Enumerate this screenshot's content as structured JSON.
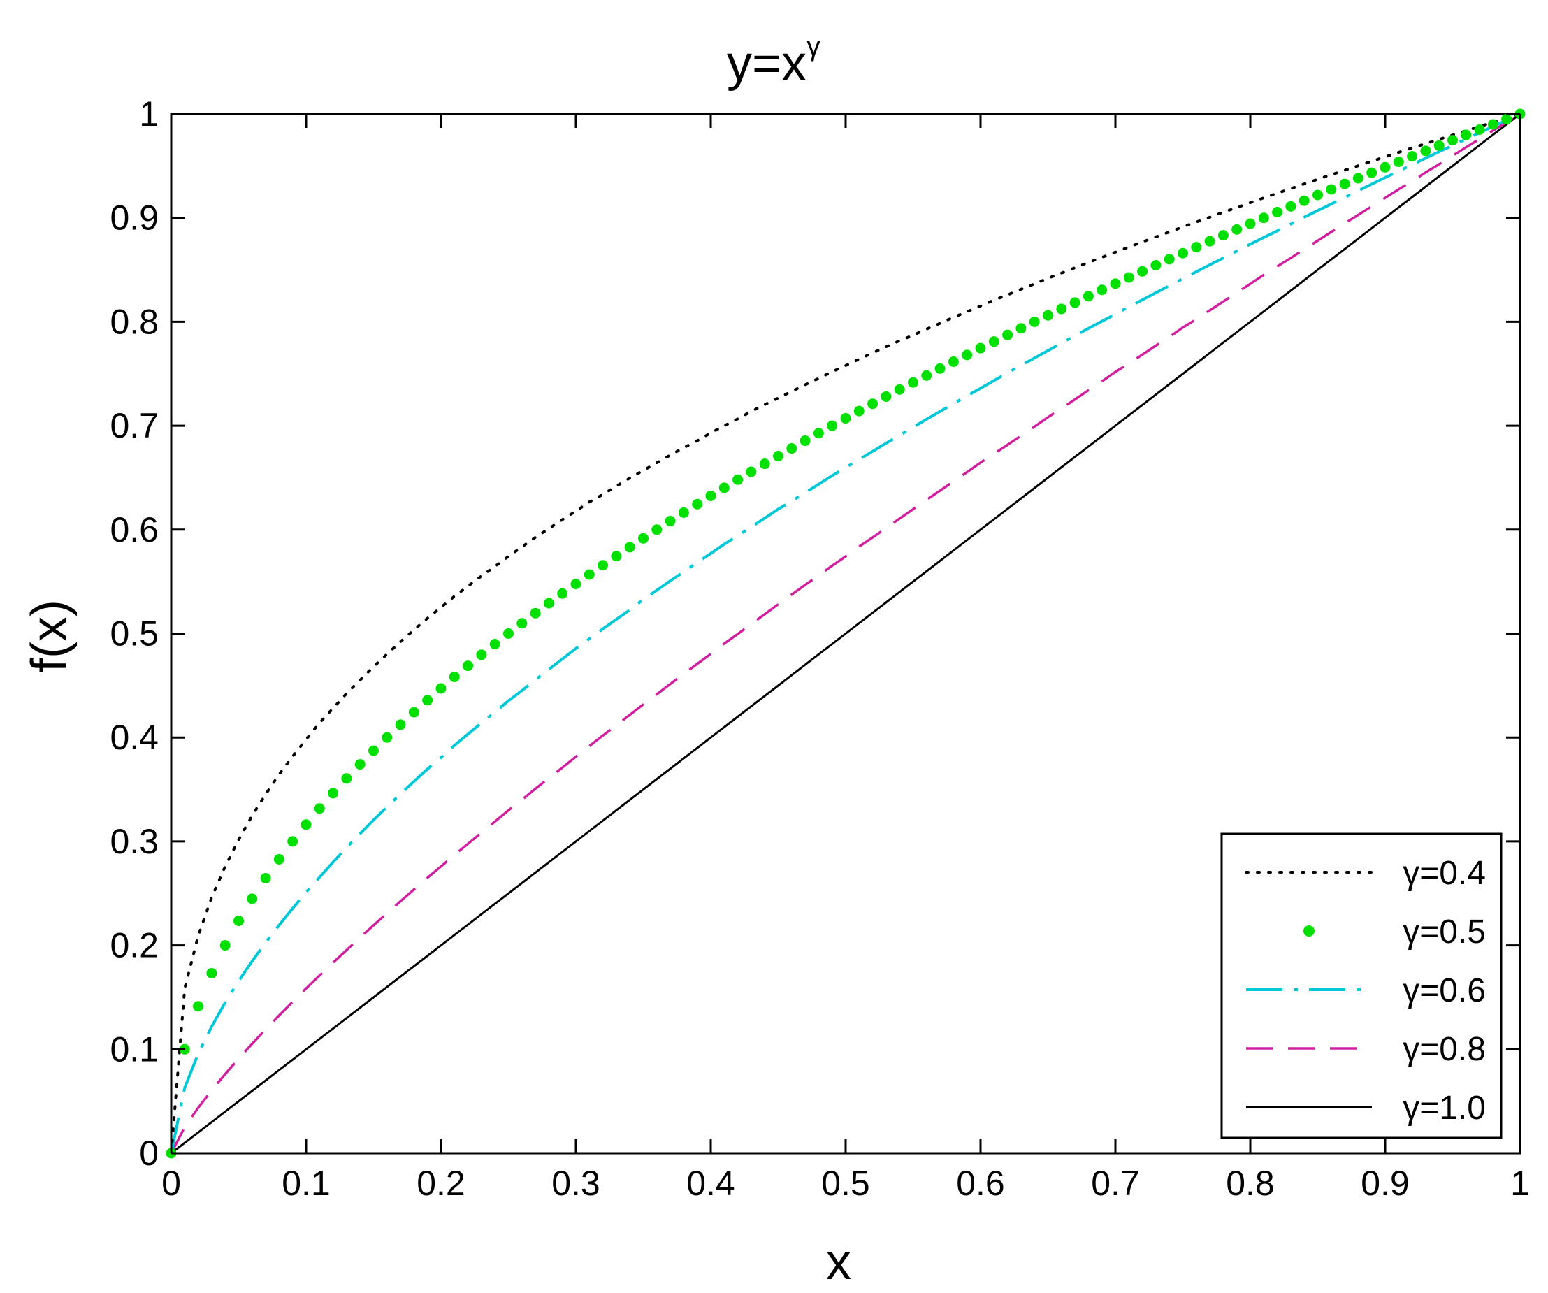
{
  "chart_data": {
    "type": "line",
    "title": {
      "base": "y=x",
      "superscript": "γ"
    },
    "xlabel": "x",
    "ylabel": "f(x)",
    "xlim": [
      0,
      1
    ],
    "ylim": [
      0,
      1
    ],
    "x_ticks": [
      0,
      0.1,
      0.2,
      0.3,
      0.4,
      0.5,
      0.6,
      0.7,
      0.8,
      0.9,
      1
    ],
    "x_tick_labels": [
      "0",
      "0.1",
      "0.2",
      "0.3",
      "0.4",
      "0.5",
      "0.6",
      "0.7",
      "0.8",
      "0.9",
      "1"
    ],
    "y_ticks": [
      0,
      0.1,
      0.2,
      0.3,
      0.4,
      0.5,
      0.6,
      0.7,
      0.8,
      0.9,
      1
    ],
    "y_tick_labels": [
      "0",
      "0.1",
      "0.2",
      "0.3",
      "0.4",
      "0.5",
      "0.6",
      "0.7",
      "0.8",
      "0.9",
      "1"
    ],
    "grid": false,
    "legend_position": "bottom-right",
    "x": [
      0,
      0.01,
      0.02,
      0.03,
      0.04,
      0.05,
      0.06,
      0.07,
      0.08,
      0.09,
      0.1,
      0.11,
      0.12,
      0.13,
      0.14,
      0.15,
      0.16,
      0.17,
      0.18,
      0.19,
      0.2,
      0.21,
      0.22,
      0.23,
      0.24,
      0.25,
      0.26,
      0.27,
      0.28,
      0.29,
      0.3,
      0.31,
      0.32,
      0.33,
      0.34,
      0.35,
      0.36,
      0.37,
      0.38,
      0.39,
      0.4,
      0.41,
      0.42,
      0.43,
      0.44,
      0.45,
      0.46,
      0.47,
      0.48,
      0.49,
      0.5,
      0.51,
      0.52,
      0.53,
      0.54,
      0.55,
      0.56,
      0.57,
      0.58,
      0.59,
      0.6,
      0.61,
      0.62,
      0.63,
      0.64,
      0.65,
      0.66,
      0.67,
      0.68,
      0.69,
      0.7,
      0.71,
      0.72,
      0.73,
      0.74,
      0.75,
      0.76,
      0.77,
      0.78,
      0.79,
      0.8,
      0.81,
      0.82,
      0.83,
      0.84,
      0.85,
      0.86,
      0.87,
      0.88,
      0.89,
      0.9,
      0.91,
      0.92,
      0.93,
      0.94,
      0.95,
      0.96,
      0.97,
      0.98,
      0.99,
      1
    ],
    "series": [
      {
        "name": "γ=0.4",
        "gamma": 0.4,
        "color": "#000000",
        "style": "dotted",
        "values": [
          0,
          0.1585,
          0.2091,
          0.2463,
          0.2759,
          0.3017,
          0.3248,
          0.3453,
          0.3644,
          0.3817,
          0.3981,
          0.4141,
          0.4281,
          0.4424,
          0.4552,
          0.4681,
          0.4802,
          0.4922,
          0.5036,
          0.5148,
          0.5253,
          0.5359,
          0.5456,
          0.5554,
          0.5646,
          0.5743,
          0.5834,
          0.5926,
          0.601,
          0.6097,
          0.6178,
          0.6266,
          0.6338,
          0.6419,
          0.6496,
          0.657,
          0.6643,
          0.6717,
          0.6789,
          0.6856,
          0.6931,
          0.6999,
          0.7066,
          0.7137,
          0.7203,
          0.7266,
          0.733,
          0.7394,
          0.7456,
          0.7519,
          0.7579,
          0.7641,
          0.77,
          0.776,
          0.7818,
          0.7871,
          0.793,
          0.7985,
          0.8044,
          0.8096,
          0.8152,
          0.8209,
          0.8258,
          0.8313,
          0.8365,
          0.8418,
          0.8468,
          0.852,
          0.8571,
          0.862,
          0.867,
          0.8719,
          0.8768,
          0.8817,
          0.8864,
          0.8913,
          0.896,
          0.9006,
          0.9055,
          0.9098,
          0.9146,
          0.9192,
          0.9237,
          0.9282,
          0.9327,
          0.9371,
          0.9415,
          0.9458,
          0.9501,
          0.9545,
          0.9587,
          0.963,
          0.9672,
          0.9714,
          0.9755,
          0.9797,
          0.9838,
          0.9879,
          0.9919,
          0.996,
          1
        ]
      },
      {
        "name": "γ=0.5",
        "gamma": 0.5,
        "color": "#00e000",
        "style": "markers",
        "values": [
          0,
          0.1,
          0.1414,
          0.1732,
          0.2,
          0.2236,
          0.2449,
          0.2646,
          0.2828,
          0.3,
          0.3162,
          0.3317,
          0.3464,
          0.3606,
          0.3742,
          0.3873,
          0.4,
          0.4123,
          0.4243,
          0.4359,
          0.4472,
          0.4583,
          0.469,
          0.4796,
          0.4899,
          0.5,
          0.5099,
          0.5196,
          0.5292,
          0.5385,
          0.5477,
          0.5568,
          0.5657,
          0.5745,
          0.5831,
          0.5916,
          0.6,
          0.6083,
          0.6164,
          0.6245,
          0.6325,
          0.6403,
          0.6481,
          0.6557,
          0.6633,
          0.6708,
          0.6782,
          0.6856,
          0.6928,
          0.7,
          0.7071,
          0.7141,
          0.7211,
          0.728,
          0.7348,
          0.7416,
          0.7483,
          0.755,
          0.7616,
          0.7681,
          0.7746,
          0.781,
          0.7874,
          0.7937,
          0.8,
          0.8062,
          0.8124,
          0.8185,
          0.8246,
          0.8307,
          0.8367,
          0.8426,
          0.8485,
          0.8544,
          0.8602,
          0.866,
          0.8718,
          0.8775,
          0.8832,
          0.8888,
          0.8944,
          0.9,
          0.9055,
          0.911,
          0.9165,
          0.922,
          0.9274,
          0.9327,
          0.9381,
          0.9434,
          0.9487,
          0.9539,
          0.9592,
          0.9644,
          0.9695,
          0.9747,
          0.9798,
          0.9849,
          0.9899,
          0.995,
          1
        ]
      },
      {
        "name": "γ=0.6",
        "gamma": 0.6,
        "color": "#00c8d8",
        "style": "dash-dot",
        "values": [
          0,
          0.0631,
          0.0956,
          0.1219,
          0.145,
          0.1657,
          0.1848,
          0.2027,
          0.2195,
          0.2355,
          0.2512,
          0.2656,
          0.28,
          0.2941,
          0.3074,
          0.3206,
          0.3333,
          0.3457,
          0.3578,
          0.3697,
          0.3807,
          0.3924,
          0.4033,
          0.414,
          0.4244,
          0.4353,
          0.4451,
          0.4555,
          0.4656,
          0.4756,
          0.4856,
          0.495,
          0.5045,
          0.5137,
          0.5227,
          0.5328,
          0.5417,
          0.5508,
          0.5594,
          0.5685,
          0.5771,
          0.586,
          0.5942,
          0.6025,
          0.6111,
          0.6197,
          0.6275,
          0.6355,
          0.6437,
          0.6519,
          0.6598,
          0.6675,
          0.6753,
          0.6832,
          0.6908,
          0.6985,
          0.7062,
          0.7137,
          0.7213,
          0.7287,
          0.736,
          0.7435,
          0.7508,
          0.7581,
          0.7651,
          0.7723,
          0.7794,
          0.7866,
          0.7936,
          0.8005,
          0.8074,
          0.8144,
          0.8211,
          0.8279,
          0.8347,
          0.8415,
          0.8481,
          0.8548,
          0.8614,
          0.868,
          0.8747,
          0.8811,
          0.8875,
          0.894,
          0.9006,
          0.907,
          0.9133,
          0.9196,
          0.9261,
          0.9324,
          0.9388,
          0.945,
          0.9512,
          0.9574,
          0.9636,
          0.9697,
          0.9758,
          0.9819,
          0.988,
          0.994,
          1
        ]
      },
      {
        "name": "γ=0.8",
        "gamma": 0.8,
        "color": "#d020a0",
        "style": "dashed",
        "values": [
          0,
          0.0251,
          0.0437,
          0.0605,
          0.0761,
          0.091,
          0.1053,
          0.1191,
          0.1326,
          0.1456,
          0.1585,
          0.171,
          0.1834,
          0.1955,
          0.2075,
          0.2193,
          0.231,
          0.2425,
          0.2538,
          0.2651,
          0.2759,
          0.287,
          0.2977,
          0.3085,
          0.3191,
          0.3299,
          0.34,
          0.3507,
          0.3609,
          0.3711,
          0.3816,
          0.3918,
          0.4019,
          0.4117,
          0.4218,
          0.4318,
          0.4416,
          0.4515,
          0.4612,
          0.4709,
          0.4804,
          0.4904,
          0.4995,
          0.5092,
          0.5186,
          0.5282,
          0.5375,
          0.5469,
          0.556,
          0.5653,
          0.5743,
          0.5837,
          0.5925,
          0.6015,
          0.6107,
          0.6197,
          0.6287,
          0.6375,
          0.6465,
          0.6553,
          0.6645,
          0.6731,
          0.6816,
          0.6904,
          0.6991,
          0.7082,
          0.7166,
          0.7253,
          0.7341,
          0.7427,
          0.7518,
          0.7599,
          0.7684,
          0.7771,
          0.7853,
          0.7945,
          0.8025,
          0.811,
          0.8195,
          0.828,
          0.8365,
          0.8451,
          0.8533,
          0.8613,
          0.8699,
          0.878,
          0.8864,
          0.8947,
          0.9028,
          0.911,
          0.9192,
          0.9275,
          0.9354,
          0.9437,
          0.9516,
          0.9598,
          0.9679,
          0.9759,
          0.984,
          0.992,
          1
        ]
      },
      {
        "name": "γ=1.0",
        "gamma": 1.0,
        "color": "#000000",
        "style": "solid",
        "values": [
          0,
          0.01,
          0.02,
          0.03,
          0.04,
          0.05,
          0.06,
          0.07,
          0.08,
          0.09,
          0.1,
          0.11,
          0.12,
          0.13,
          0.14,
          0.15,
          0.16,
          0.17,
          0.18,
          0.19,
          0.2,
          0.21,
          0.22,
          0.23,
          0.24,
          0.25,
          0.26,
          0.27,
          0.28,
          0.29,
          0.3,
          0.31,
          0.32,
          0.33,
          0.34,
          0.35,
          0.36,
          0.37,
          0.38,
          0.39,
          0.4,
          0.41,
          0.42,
          0.43,
          0.44,
          0.45,
          0.46,
          0.47,
          0.48,
          0.49,
          0.5,
          0.51,
          0.52,
          0.53,
          0.54,
          0.55,
          0.56,
          0.57,
          0.58,
          0.59,
          0.6,
          0.61,
          0.62,
          0.63,
          0.64,
          0.65,
          0.66,
          0.67,
          0.68,
          0.69,
          0.7,
          0.71,
          0.72,
          0.73,
          0.74,
          0.75,
          0.76,
          0.77,
          0.78,
          0.79,
          0.8,
          0.81,
          0.82,
          0.83,
          0.84,
          0.85,
          0.86,
          0.87,
          0.88,
          0.89,
          0.9,
          0.91,
          0.92,
          0.93,
          0.94,
          0.95,
          0.96,
          0.97,
          0.98,
          0.99,
          1
        ]
      }
    ]
  }
}
